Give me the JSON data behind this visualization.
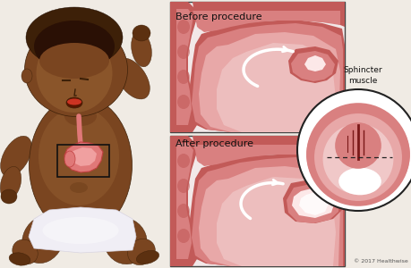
{
  "bg_color": "#f0ebe4",
  "title_before": "Before procedure",
  "title_after": "After procedure",
  "label_sphincter": "Sphincter\nmuscle",
  "copyright": "© 2017 Healthwise",
  "colors": {
    "stomach_outer": "#c25a58",
    "stomach_mid": "#d98080",
    "stomach_fill": "#e8a8a8",
    "stomach_light": "#f0c8c8",
    "stomach_inner_light": "#f5d8d8",
    "white": "#ffffff",
    "box_border": "#444444",
    "circle_border": "#333333",
    "incision_dark": "#7a1818",
    "dashes": "#222222",
    "skin_dark": "#3d2008",
    "skin_mid": "#5c3010",
    "skin_base": "#7a4520",
    "skin_light": "#9a6535",
    "skin_highlight": "#b07840",
    "diaper_white": "#f0eef5",
    "diaper_shadow": "#d8d4e0",
    "pink_stomach": "#e07878",
    "esoph_pink": "#e07878"
  },
  "figsize": [
    4.6,
    3.0
  ],
  "dpi": 100
}
